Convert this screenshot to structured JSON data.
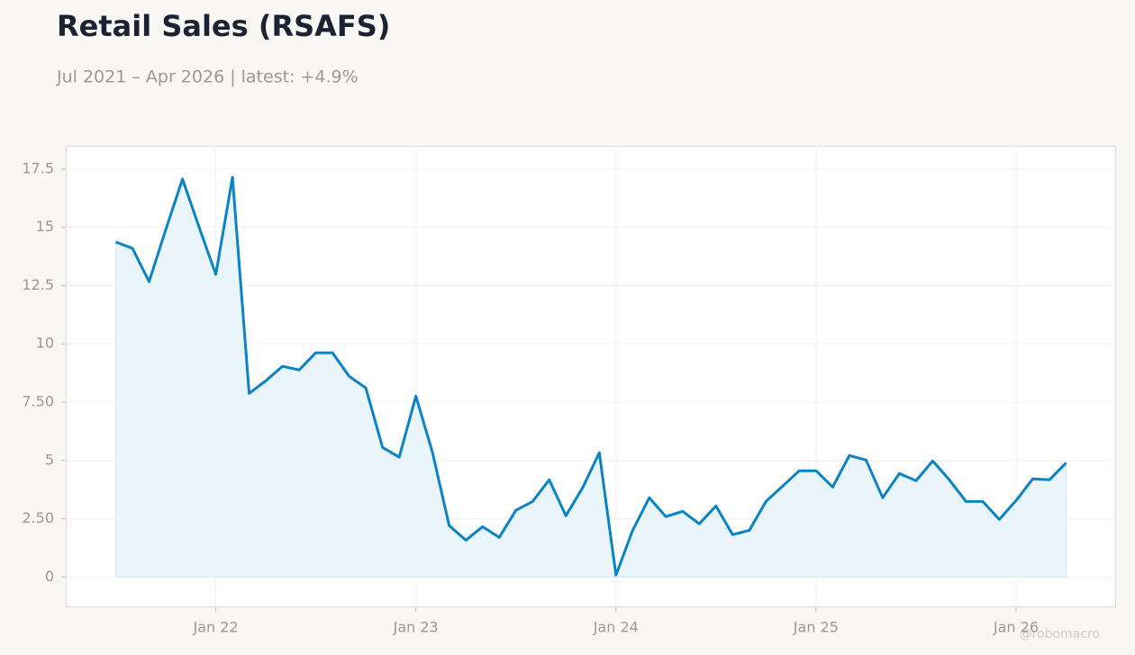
{
  "chart_data": {
    "type": "line",
    "title": "Retail Sales (RSAFS)",
    "subtitle": "Jul 2021 – Apr 2026 | latest: +4.9%",
    "watermark": "@robomacro",
    "x": [
      "2021-07",
      "2021-08",
      "2021-09",
      "2021-10",
      "2021-11",
      "2021-12",
      "2022-01",
      "2022-02",
      "2022-03",
      "2022-04",
      "2022-05",
      "2022-06",
      "2022-07",
      "2022-08",
      "2022-09",
      "2022-10",
      "2022-11",
      "2022-12",
      "2023-01",
      "2023-02",
      "2023-03",
      "2023-04",
      "2023-05",
      "2023-06",
      "2023-07",
      "2023-08",
      "2023-09",
      "2023-10",
      "2023-11",
      "2023-12",
      "2024-01",
      "2024-02",
      "2024-03",
      "2024-04",
      "2024-05",
      "2024-06",
      "2024-07",
      "2024-08",
      "2024-09",
      "2024-10",
      "2024-11",
      "2024-12",
      "2025-01",
      "2025-02",
      "2025-03",
      "2025-04",
      "2025-05",
      "2025-06",
      "2025-07",
      "2025-08",
      "2025-09",
      "2025-10",
      "2025-11",
      "2025-12",
      "2026-01",
      "2026-02",
      "2026-03",
      "2026-04"
    ],
    "series": [
      {
        "name": "RSAFS",
        "color": "#0a84c6",
        "fill": "#eaf4fb",
        "values": [
          14.37,
          14.1,
          12.67,
          14.9,
          17.07,
          15.0,
          12.98,
          17.15,
          7.88,
          8.42,
          9.04,
          8.88,
          9.62,
          9.62,
          8.61,
          8.11,
          5.56,
          5.14,
          7.76,
          5.33,
          2.2,
          1.58,
          2.16,
          1.7,
          2.86,
          3.24,
          4.17,
          2.63,
          3.82,
          5.33,
          0.08,
          2.0,
          3.4,
          2.59,
          2.82,
          2.28,
          3.05,
          1.82,
          2.0,
          3.24,
          3.9,
          4.56,
          4.56,
          3.86,
          5.21,
          5.02,
          3.4,
          4.44,
          4.13,
          4.98,
          4.17,
          3.24,
          3.24,
          2.47,
          3.28,
          4.21,
          4.17,
          4.9
        ]
      }
    ],
    "xlim": [
      "2021-04",
      "2026-07"
    ],
    "xticks": [
      {
        "value": "2022-01",
        "label": "Jan 22"
      },
      {
        "value": "2023-01",
        "label": "Jan 23"
      },
      {
        "value": "2024-01",
        "label": "Jan 24"
      },
      {
        "value": "2025-01",
        "label": "Jan 25"
      },
      {
        "value": "2026-01",
        "label": "Jan 26"
      }
    ],
    "ylim": [
      -1.3,
      18.5
    ],
    "yticks": [
      0,
      {
        "value": 2.5,
        "label": "2.50"
      },
      5,
      {
        "value": 7.5,
        "label": "7.50"
      },
      10,
      12.5,
      15,
      17.5
    ],
    "grid": true
  }
}
